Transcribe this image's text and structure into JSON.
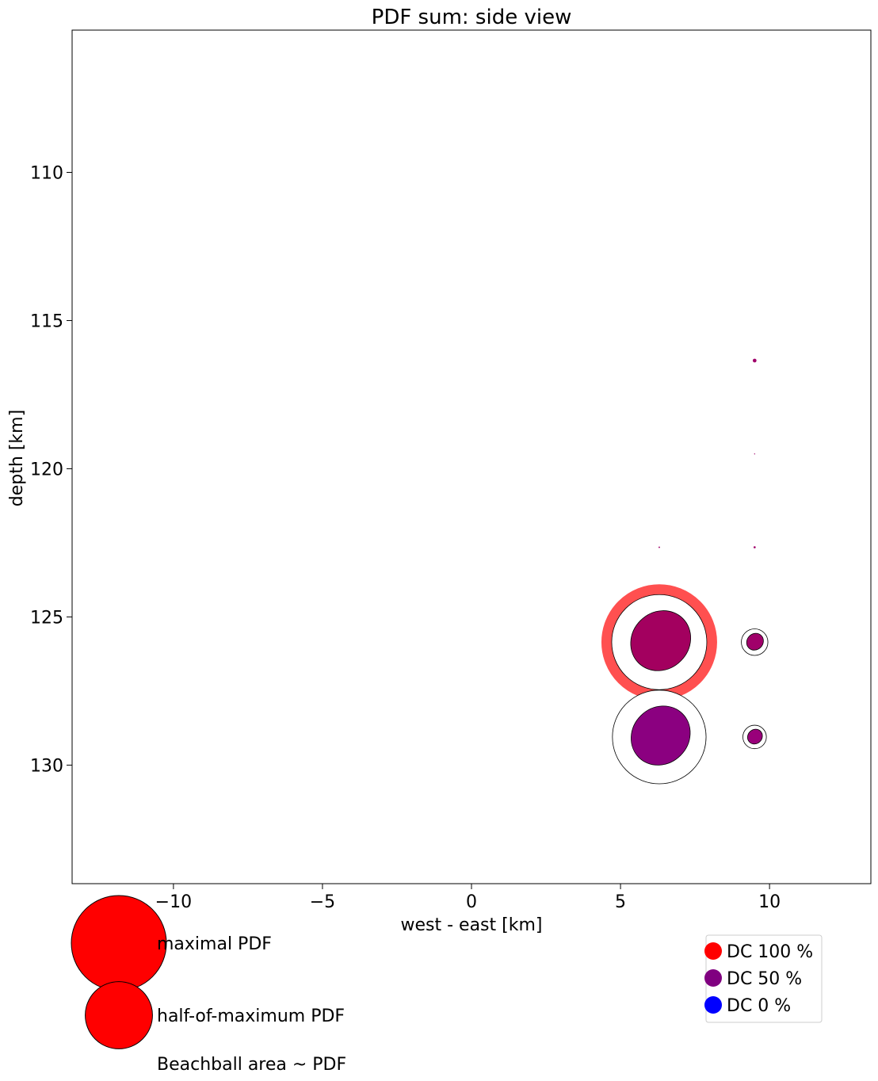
{
  "chart_data": {
    "type": "scatter",
    "title": "PDF sum: side view",
    "xlabel": "west - east [km]",
    "ylabel": "depth [km]",
    "xlim": [
      -13.4,
      13.4
    ],
    "ylim": [
      134,
      105.2
    ],
    "y_inverted": true,
    "grid": false,
    "xticks": [
      {
        "value": -10,
        "label": "−10"
      },
      {
        "value": -5,
        "label": "−5"
      },
      {
        "value": 0,
        "label": "0"
      },
      {
        "value": 5,
        "label": "5"
      },
      {
        "value": 10,
        "label": "10"
      }
    ],
    "yticks": [
      {
        "value": 110,
        "label": "110"
      },
      {
        "value": 115,
        "label": "115"
      },
      {
        "value": 120,
        "label": "120"
      },
      {
        "value": 125,
        "label": "125"
      },
      {
        "value": 130,
        "label": "130"
      }
    ],
    "points": [
      {
        "x": 6.3,
        "y": 125.85,
        "pdf": 1.0,
        "dc_percent": 75,
        "color": "#a3005f",
        "maximum": true
      },
      {
        "x": 6.3,
        "y": 129.05,
        "pdf": 0.97,
        "dc_percent": 50,
        "color": "#8b0080",
        "maximum": false
      },
      {
        "x": 9.5,
        "y": 125.85,
        "pdf": 0.078,
        "dc_percent": 70,
        "color": "#a0006a",
        "maximum": false
      },
      {
        "x": 9.5,
        "y": 129.05,
        "pdf": 0.061,
        "dc_percent": 65,
        "color": "#99007a",
        "maximum": false
      },
      {
        "x": 9.5,
        "y": 116.35,
        "pdf": 0.0006,
        "dc_percent": 70,
        "color": "#a0006a",
        "maximum": false
      },
      {
        "x": 9.5,
        "y": 122.65,
        "pdf": 0.0002,
        "dc_percent": 70,
        "color": "#a0006a",
        "maximum": false
      },
      {
        "x": 6.3,
        "y": 122.65,
        "pdf": 0.0001,
        "dc_percent": 70,
        "color": "#a0006a",
        "maximum": false
      },
      {
        "x": 9.5,
        "y": 119.5,
        "pdf": 5e-05,
        "dc_percent": 70,
        "color": "#a0006a",
        "maximum": false
      }
    ],
    "maximum_highlight_color": "#ff5050",
    "size_legend": {
      "entries": [
        {
          "label": "maximal PDF",
          "pdf": 1.0,
          "color": "#ff0000"
        },
        {
          "label": "half-of-maximum PDF",
          "pdf": 0.5,
          "color": "#ff0000"
        }
      ],
      "note": "Beachball area ~ PDF"
    },
    "color_legend": {
      "placement": "bottom-right",
      "entries": [
        {
          "label": "DC 100 %",
          "color": "#ff0000"
        },
        {
          "label": "DC 50 %",
          "color": "#800080"
        },
        {
          "label": "DC 0 %",
          "color": "#0000ff"
        }
      ]
    }
  }
}
